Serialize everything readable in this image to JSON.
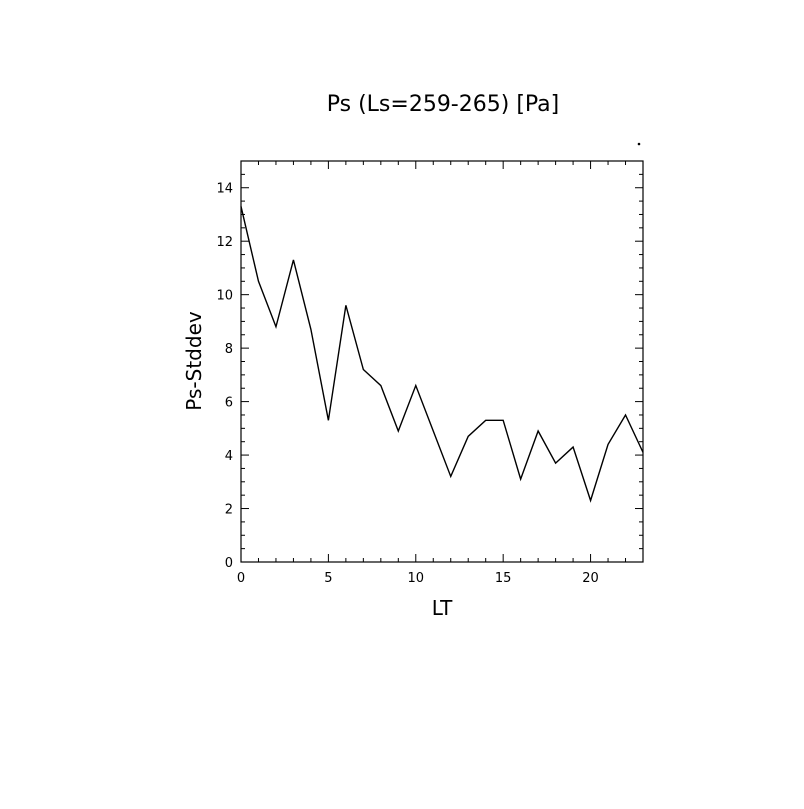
{
  "chart_data": {
    "type": "line",
    "title": "Ps (Ls=259-265) [Pa]",
    "xlabel": "LT",
    "ylabel": "Ps-Stddev",
    "xlim": [
      0,
      23
    ],
    "ylim": [
      0,
      15
    ],
    "xticks": [
      0,
      5,
      10,
      15,
      20
    ],
    "yticks": [
      0,
      2,
      4,
      6,
      8,
      10,
      12,
      14
    ],
    "grid": false,
    "series": [
      {
        "x": [
          0,
          1,
          2,
          3,
          4,
          5,
          6,
          7,
          8,
          9,
          10,
          11,
          12,
          13,
          14,
          15,
          16,
          17,
          18,
          19,
          20,
          21,
          22,
          23
        ],
        "values": [
          13.3,
          10.5,
          8.8,
          11.3,
          8.7,
          5.3,
          9.6,
          7.2,
          6.6,
          4.9,
          6.6,
          4.9,
          3.2,
          4.7,
          5.3,
          5.3,
          3.1,
          4.9,
          3.7,
          4.3,
          2.3,
          4.4,
          5.5,
          4.1
        ]
      }
    ]
  }
}
